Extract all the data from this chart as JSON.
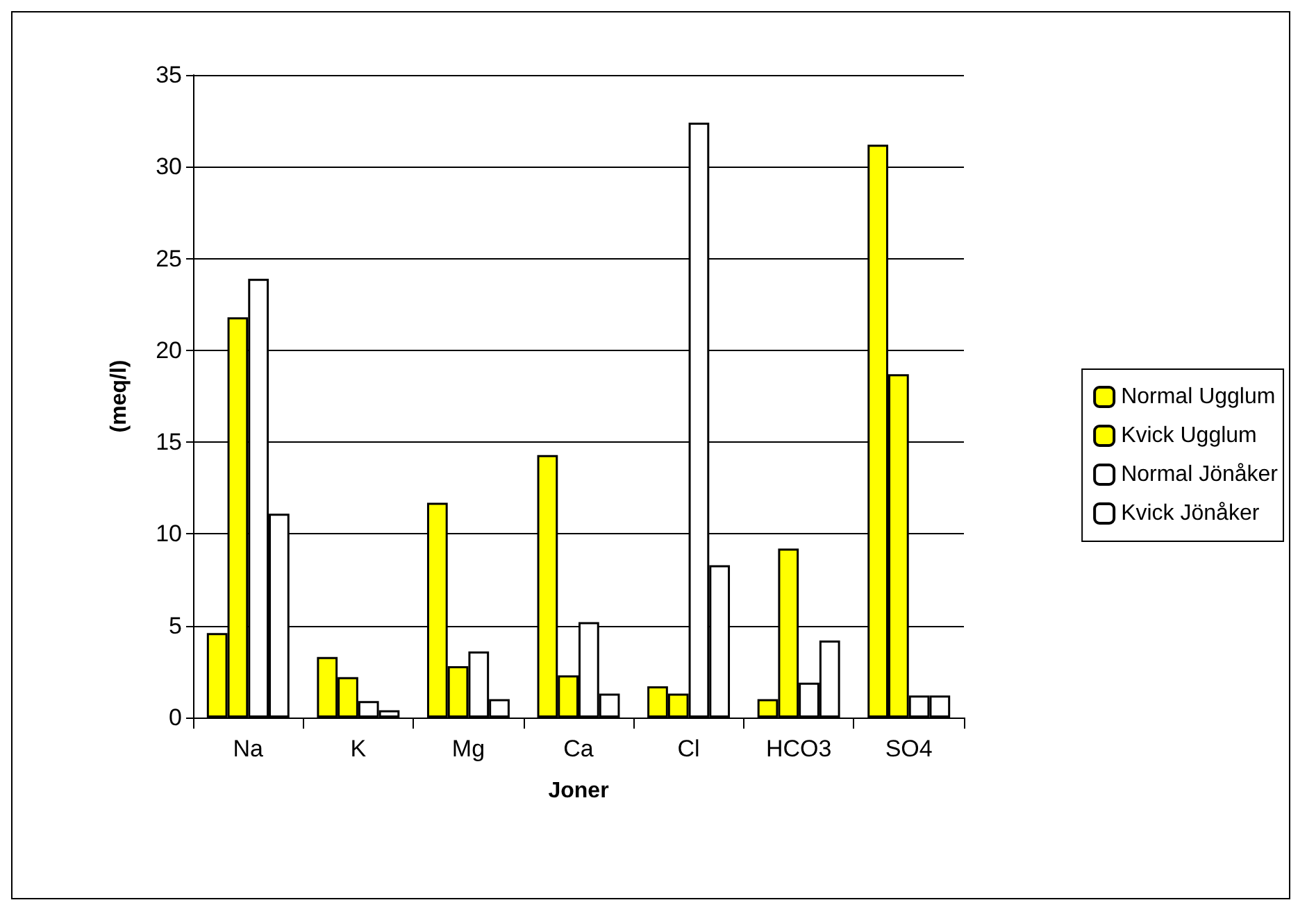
{
  "chart_data": {
    "type": "bar",
    "xlabel": "Joner",
    "ylabel": "(meq/l)",
    "categories": [
      "Na",
      "K",
      "Mg",
      "Ca",
      "Cl",
      "HCO3",
      "SO4"
    ],
    "series": [
      {
        "name": "Normal Ugglum",
        "color": "#ffff00",
        "values": [
          4.6,
          3.3,
          11.7,
          14.3,
          1.7,
          1.0,
          31.2
        ]
      },
      {
        "name": "Kvick Ugglum",
        "color": "#ffff00",
        "values": [
          21.8,
          2.2,
          2.8,
          2.3,
          1.3,
          9.2,
          18.7
        ]
      },
      {
        "name": "Normal Jönåker",
        "color": "#ffffff",
        "values": [
          23.9,
          0.9,
          3.6,
          5.2,
          32.4,
          1.9,
          1.2
        ]
      },
      {
        "name": "Kvick Jönåker",
        "color": "#ffffff",
        "values": [
          11.1,
          0.4,
          1.0,
          1.3,
          8.3,
          4.2,
          1.2
        ]
      }
    ],
    "ylim": [
      0,
      35
    ],
    "yticks": [
      0,
      5,
      10,
      15,
      20,
      25,
      30,
      35
    ],
    "grid": "y",
    "legend": "right"
  }
}
